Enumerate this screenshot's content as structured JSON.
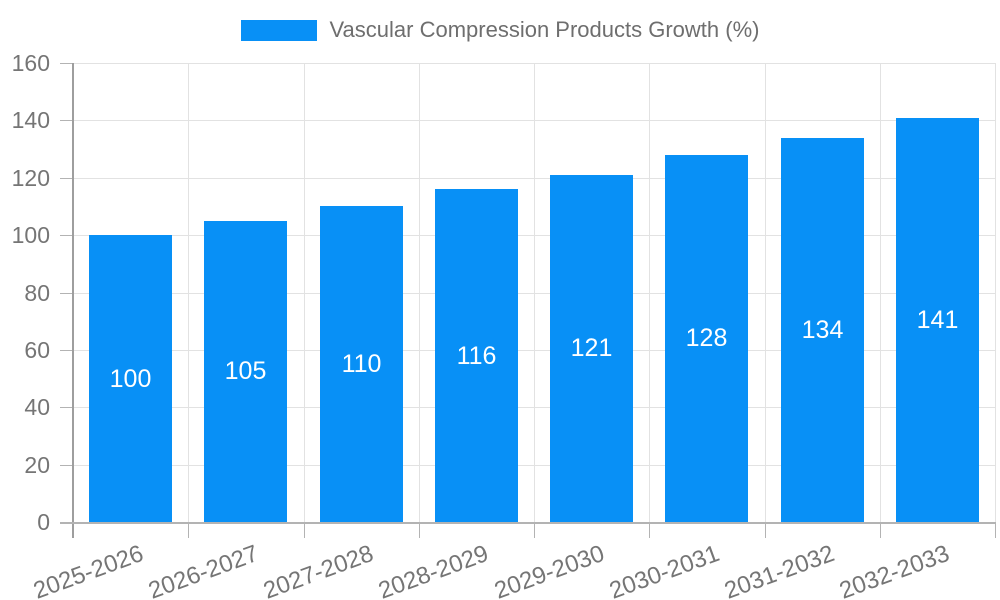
{
  "chart_data": {
    "type": "bar",
    "title": "Vascular Compression Products Growth (%)",
    "categories": [
      "2025-2026",
      "2026-2027",
      "2027-2028",
      "2028-2029",
      "2029-2030",
      "2030-2031",
      "2031-2032",
      "2032-2033"
    ],
    "values": [
      100,
      105,
      110,
      116,
      121,
      128,
      134,
      141
    ],
    "xlabel": "",
    "ylabel": "",
    "ylim": [
      0,
      160
    ],
    "yticks": [
      0,
      20,
      40,
      60,
      80,
      100,
      120,
      140,
      160
    ],
    "grid": true,
    "legend_position": "top",
    "value_labels_shown": true,
    "x_label_rotation_deg": -20,
    "colors": {
      "bar": "#0890f6",
      "value_label": "#ffffff",
      "grid_line": "#e2e2e2",
      "y_axis_line": "#9e9e9e",
      "x_axis_line": "#b3b3b3",
      "tick_mark": "#b3b3b3",
      "axis_label": "#757575",
      "title_text": "#6e6e6e"
    }
  }
}
